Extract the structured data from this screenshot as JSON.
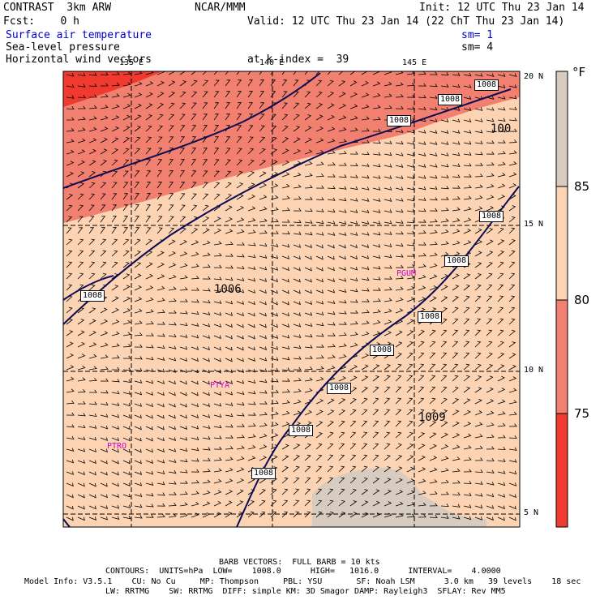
{
  "header": {
    "model": "CONTRAST  3km ARW",
    "org": "NCAR/MMM",
    "init": "Init: 12 UTC Thu 23 Jan 14",
    "fcst": "Fcst:    0 h",
    "valid": "Valid: 12 UTC Thu 23 Jan 14 (22 ChT Thu 23 Jan 14)",
    "field1": "Surface air temperature",
    "field1_sm": "sm= 1",
    "field2": "Sea-level pressure",
    "field2_sm": "sm= 4",
    "field3": "Horizontal wind vectors",
    "field3_level": "at k-index =  39"
  },
  "map": {
    "lon_labels": [
      "135 E",
      "140 E",
      "145 E"
    ],
    "lat_labels": [
      "20 N",
      "15 N",
      "10 N",
      "5 N"
    ],
    "stations": [
      "PGUM",
      "PTYA",
      "PTRO"
    ],
    "pressure_labels": [
      "1006",
      "1008",
      "1009",
      "100"
    ],
    "contour_line_color": "#0a0a55",
    "shade_colors": {
      "below_75": "#f03a30",
      "75_80": "#f28070",
      "80_85": "#fcd4b4",
      "above_85": "#d8ccc0"
    }
  },
  "colorbar": {
    "unit": "°F",
    "labels": [
      "85",
      "80",
      "75"
    ]
  },
  "footer": {
    "barb": "BARB VECTORS:  FULL BARB = 10 kts",
    "contours": "CONTOURS:  UNITS=hPa  LOW=    1008.0      HIGH=   1016.0      INTERVAL=    4.0000",
    "model_info": "Model Info: V3.5.1    CU: No Cu     MP: Thompson     PBL: YSU       SF: Noah LSM      3.0 km   39 levels    18 sec",
    "model_info2": "LW: RRTMG    SW: RRTMG  DIFF: simple KM: 3D Smagor DAMP: Rayleigh3  SFLAY: Rev MM5"
  }
}
